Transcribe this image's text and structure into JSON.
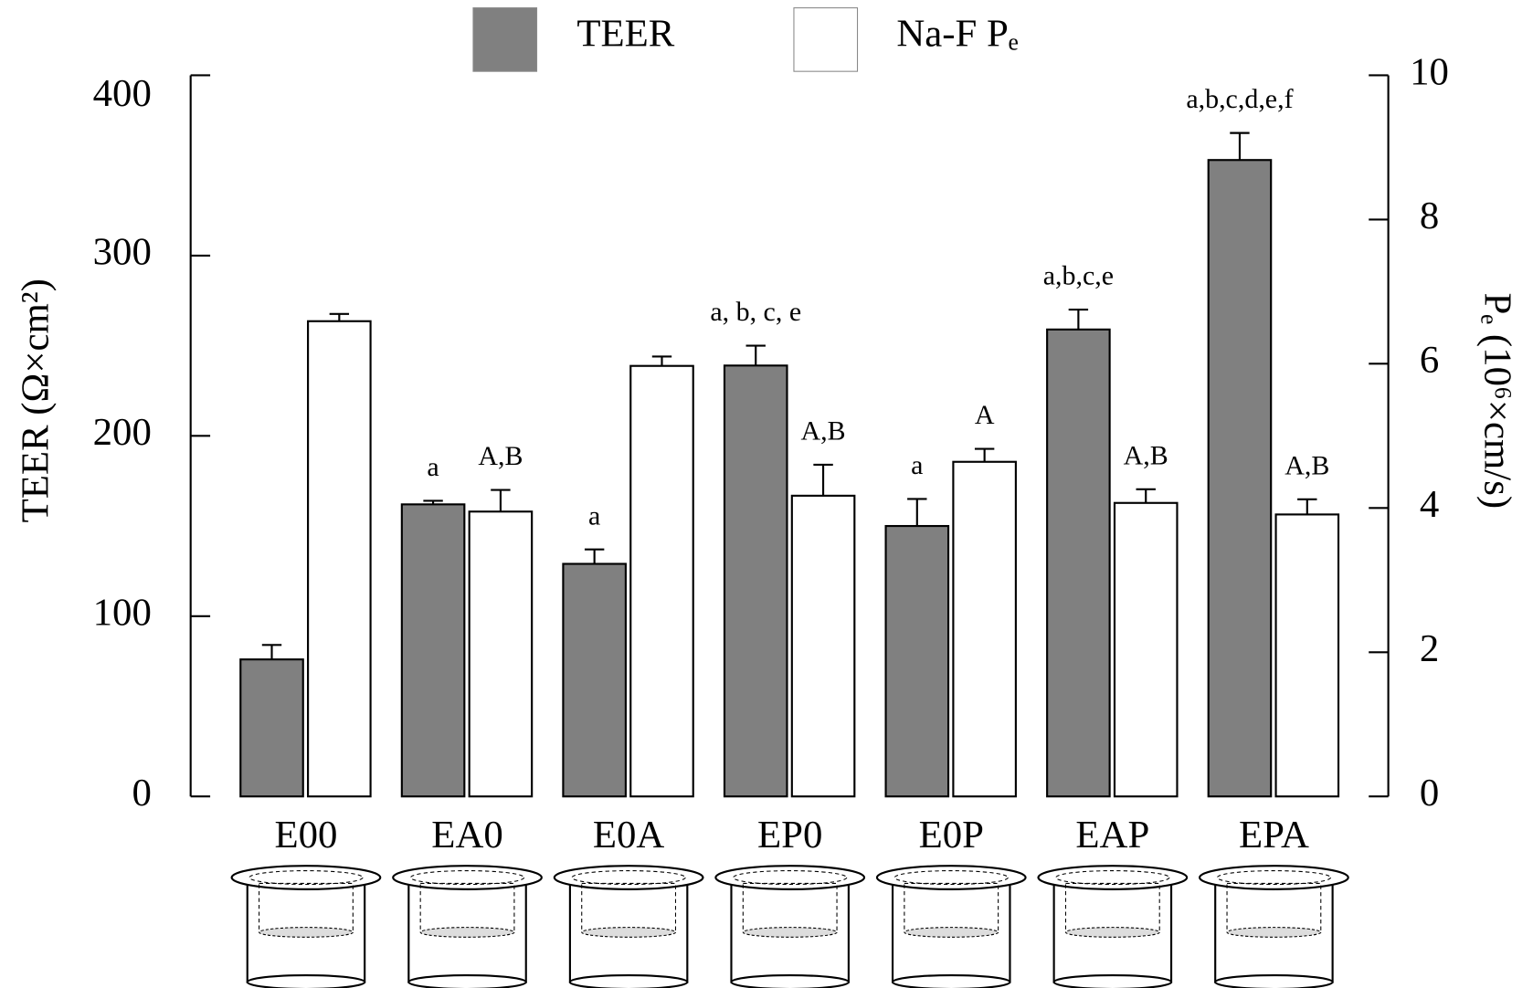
{
  "chart_data": {
    "type": "bar",
    "categories": [
      "E00",
      "EA0",
      "E0A",
      "EP0",
      "E0P",
      "EAP",
      "EPA"
    ],
    "y_label": "TEER (Ω×cm²)",
    "y2_label": "Pₑ (10⁶×cm/s)",
    "ylim": [
      0,
      400
    ],
    "yticks": [
      0,
      100,
      200,
      300,
      400
    ],
    "y2lim": [
      0,
      10
    ],
    "y2ticks": [
      0,
      2,
      4,
      6,
      8,
      10
    ],
    "series": [
      {
        "name": "TEER",
        "color": "#808080",
        "values": [
          76,
          162,
          129,
          239,
          150,
          259,
          353
        ],
        "errors": [
          8,
          2,
          8,
          11,
          15,
          11,
          15
        ],
        "annotations": [
          null,
          "a",
          "a",
          "a, b, c, e",
          "a",
          "a,b,c,e",
          "a,b,c,d,e,f"
        ]
      },
      {
        "name": "Na-F Pₑ",
        "color": "#ffffff",
        "axis": "y2",
        "values": [
          6.59,
          3.95,
          5.97,
          4.17,
          4.64,
          4.07,
          3.91
        ],
        "errors": [
          0.1,
          0.3,
          0.13,
          0.43,
          0.18,
          0.19,
          0.21
        ],
        "annotations": [
          null,
          "A,B",
          null,
          "A,B",
          "A",
          "A,B",
          "A,B"
        ]
      }
    ]
  }
}
